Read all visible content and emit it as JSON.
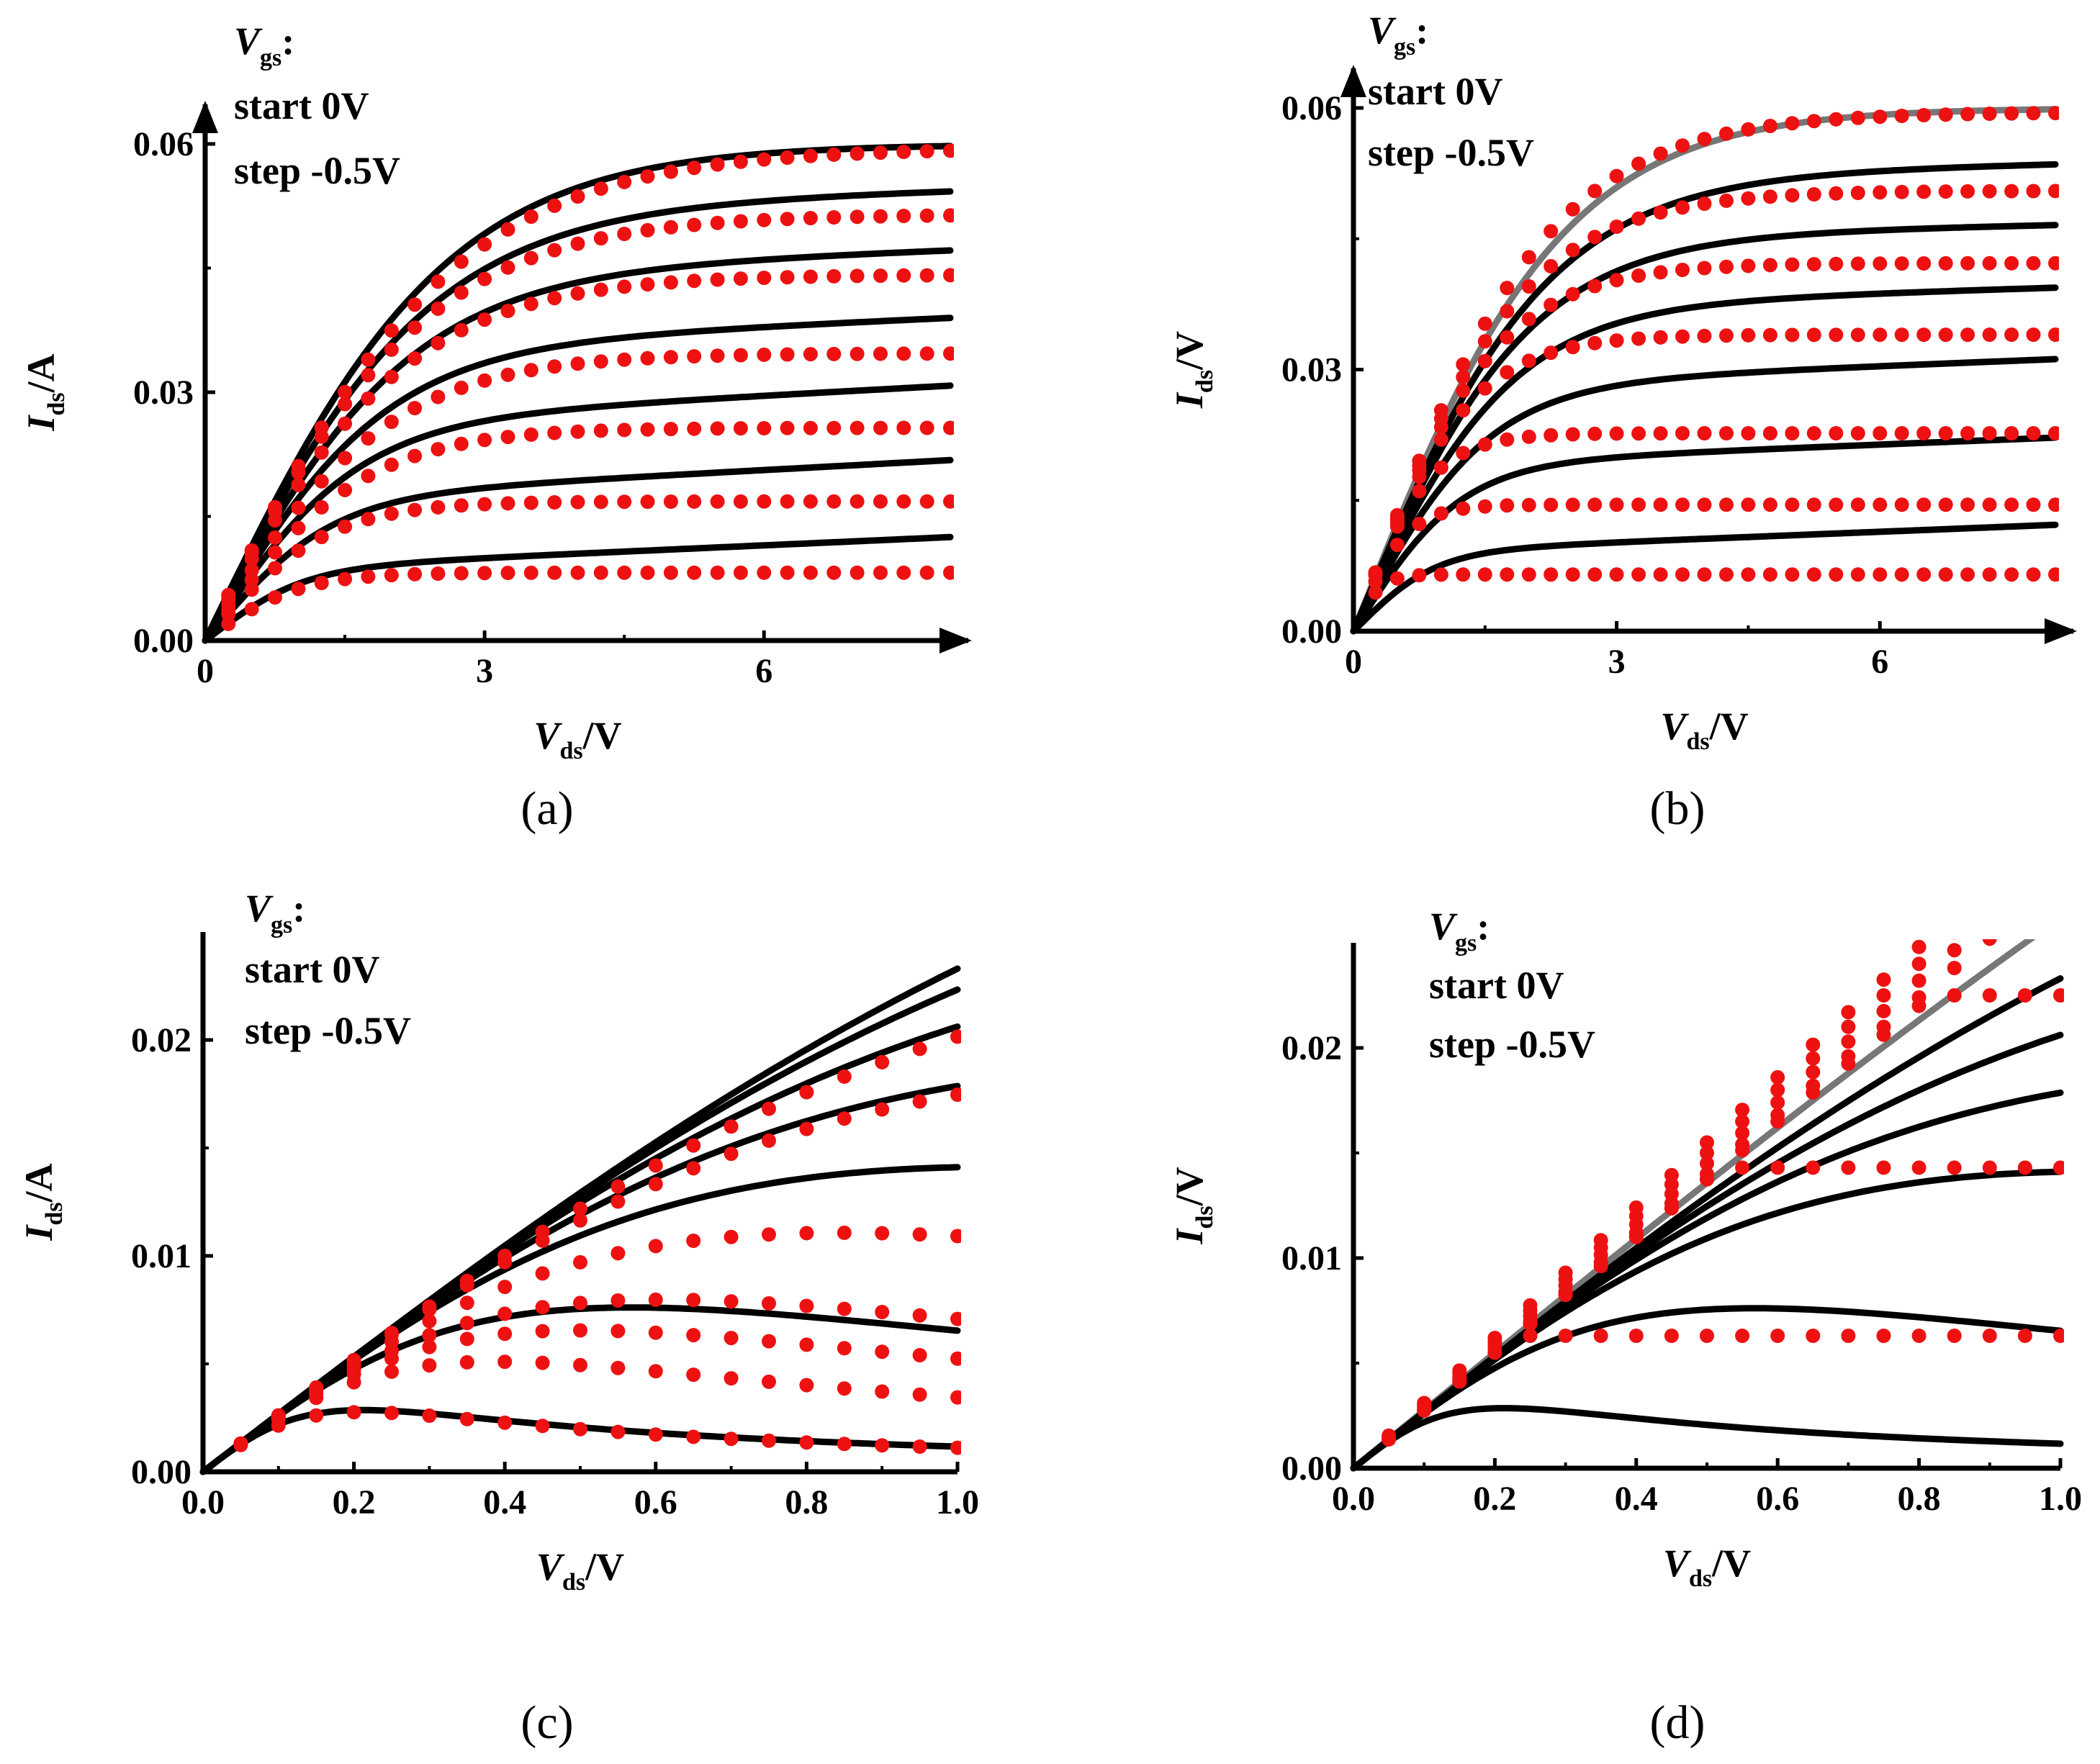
{
  "figure": {
    "panels": [
      "a",
      "b",
      "c",
      "d"
    ]
  },
  "chart_data": [
    {
      "id": "a",
      "type": "line",
      "caption": "(a)",
      "xlabel": {
        "main": "V",
        "sub": "ds",
        "unit": "/V"
      },
      "ylabel": {
        "main": "I",
        "sub": "ds",
        "unit": "/A"
      },
      "xlim": [
        0,
        8
      ],
      "ylim": [
        0,
        0.06
      ],
      "x_ticks": [
        0,
        3,
        6
      ],
      "x_tick_labels": [
        "0",
        "3",
        "6"
      ],
      "y_ticks": [
        0,
        0.03,
        0.06
      ],
      "y_tick_labels": [
        "0.00",
        "0.03",
        "0.06"
      ],
      "arrows": true,
      "legend": {
        "title_main": "V",
        "title_sub": "gs",
        "title_colon": ":",
        "lines": [
          "start 0V",
          "step -0.5V"
        ],
        "position": "top-left"
      },
      "line_color": "#000000",
      "dot_color": "#ee1111",
      "model_curves": [
        {
          "isat": 0.06,
          "slope": 0.0,
          "vsat": 2.6
        },
        {
          "isat": 0.052,
          "slope": 0.0003,
          "vsat": 2.4
        },
        {
          "isat": 0.044,
          "slope": 0.0004,
          "vsat": 2.2
        },
        {
          "isat": 0.035,
          "slope": 0.0005,
          "vsat": 1.9
        },
        {
          "isat": 0.026,
          "slope": 0.0006,
          "vsat": 1.6
        },
        {
          "isat": 0.017,
          "slope": 0.0006,
          "vsat": 1.3
        },
        {
          "isat": 0.0085,
          "slope": 0.0005,
          "vsat": 1.0
        }
      ],
      "measured_points": [
        {
          "isat": 0.0595,
          "vsat": 2.7
        },
        {
          "isat": 0.0515,
          "vsat": 2.4
        },
        {
          "isat": 0.0442,
          "vsat": 2.2
        },
        {
          "isat": 0.0347,
          "vsat": 2.0
        },
        {
          "isat": 0.0257,
          "vsat": 1.7
        },
        {
          "isat": 0.0168,
          "vsat": 1.3
        },
        {
          "isat": 0.0082,
          "vsat": 1.0
        }
      ],
      "point_x_step": 0.25
    },
    {
      "id": "b",
      "type": "line",
      "caption": "(b)",
      "xlabel": {
        "main": "V",
        "sub": "ds",
        "unit": "/V"
      },
      "ylabel": {
        "main": "I",
        "sub": "ds",
        "unit": "/V"
      },
      "xlim": [
        0,
        8
      ],
      "ylim": [
        0,
        0.06
      ],
      "x_ticks": [
        0,
        3,
        6
      ],
      "x_tick_labels": [
        "0",
        "3",
        "6"
      ],
      "y_ticks": [
        0,
        0.03,
        0.06
      ],
      "y_tick_labels": [
        "0.00",
        "0.03",
        "0.06"
      ],
      "arrows": true,
      "legend": {
        "title_main": "V",
        "title_sub": "gs",
        "title_colon": ":",
        "lines": [
          "start 0V",
          "step -0.5V"
        ],
        "position": "top-left"
      },
      "line_color": "#000000",
      "gray_color": "#777777",
      "dot_color": "#ee1111",
      "model_curves": [
        {
          "isat": 0.06,
          "slope": 0.0,
          "vsat": 2.4,
          "gray": true
        },
        {
          "isat": 0.052,
          "slope": 0.0002,
          "vsat": 2.2
        },
        {
          "isat": 0.045,
          "slope": 0.0002,
          "vsat": 2.0
        },
        {
          "isat": 0.037,
          "slope": 0.0003,
          "vsat": 1.8
        },
        {
          "isat": 0.028,
          "slope": 0.0004,
          "vsat": 1.5
        },
        {
          "isat": 0.019,
          "slope": 0.0004,
          "vsat": 1.2
        },
        {
          "isat": 0.009,
          "slope": 0.0004,
          "vsat": 0.9
        }
      ],
      "measured_points": [
        {
          "isat": 0.0595,
          "vsat": 2.2
        },
        {
          "isat": 0.0505,
          "vsat": 1.9
        },
        {
          "isat": 0.0422,
          "vsat": 1.6
        },
        {
          "isat": 0.034,
          "vsat": 1.3
        },
        {
          "isat": 0.0227,
          "vsat": 0.85
        },
        {
          "isat": 0.0145,
          "vsat": 0.6
        },
        {
          "isat": 0.0065,
          "vsat": 0.3
        }
      ],
      "point_x_step": 0.25
    },
    {
      "id": "c",
      "type": "line",
      "caption": "(c)",
      "xlabel": {
        "main": "V",
        "sub": "ds",
        "unit": "/V"
      },
      "ylabel": {
        "main": "I",
        "sub": "ds",
        "unit": "/A"
      },
      "xlim": [
        0,
        1
      ],
      "ylim": [
        0,
        0.025
      ],
      "x_ticks": [
        0,
        0.2,
        0.4,
        0.6,
        0.8,
        1.0
      ],
      "x_tick_labels": [
        "0.0",
        "0.2",
        "0.4",
        "0.6",
        "0.8",
        "1.0"
      ],
      "y_ticks": [
        0,
        0.01,
        0.02
      ],
      "y_tick_labels": [
        "0.00",
        "0.01",
        "0.02"
      ],
      "arrows": false,
      "legend": {
        "title_main": "V",
        "title_sub": "gs",
        "title_colon": ":",
        "lines": [
          "start 0V",
          "step -0.5V"
        ],
        "position": "top-left"
      },
      "line_color": "#000000",
      "dot_color": "#ee1111",
      "model_curves": [
        {
          "g0": 0.0268,
          "k": 0.15
        },
        {
          "g0": 0.0268,
          "k": 0.2
        },
        {
          "g0": 0.0268,
          "k": 0.3
        },
        {
          "g0": 0.0268,
          "k": 0.5
        },
        {
          "g0": 0.0268,
          "k": 0.9
        },
        {
          "g0": 0.0268,
          "k": 3.1
        },
        {
          "g0": 0.0268,
          "k": 22.0
        }
      ],
      "measured_points": [
        {
          "g0": 0.0262,
          "k": 0.3
        },
        {
          "g0": 0.0262,
          "k": 0.5
        },
        {
          "g0": 0.0262,
          "k": 1.4
        },
        {
          "g0": 0.0262,
          "k": 2.7
        },
        {
          "g0": 0.0262,
          "k": 4.0
        },
        {
          "g0": 0.0262,
          "k": 6.6
        },
        {
          "g0": 0.0262,
          "k": 22.5
        }
      ],
      "point_x_step": 0.05
    },
    {
      "id": "d",
      "type": "line",
      "caption": "(d)",
      "xlabel": {
        "main": "V",
        "sub": "ds",
        "unit": "/V"
      },
      "ylabel": {
        "main": "I",
        "sub": "ds",
        "unit": "/V"
      },
      "xlim": [
        0,
        1
      ],
      "ylim": [
        0,
        0.025
      ],
      "x_ticks": [
        0,
        0.2,
        0.4,
        0.6,
        0.8,
        1.0
      ],
      "x_tick_labels": [
        "0.0",
        "0.2",
        "0.4",
        "0.6",
        "0.8",
        "1.0"
      ],
      "y_ticks": [
        0,
        0.01,
        0.02
      ],
      "y_tick_labels": [
        "0.00",
        "0.01",
        "0.02"
      ],
      "arrows": false,
      "legend": {
        "title_main": "V",
        "title_sub": "gs",
        "title_colon": ":",
        "lines": [
          "start 0V",
          "step -0.5V"
        ],
        "position": "top-left"
      },
      "line_color": "#000000",
      "gray_color": "#777777",
      "dot_color": "#ee1111",
      "model_curves": [
        {
          "g0": 0.0275,
          "k": 0.05,
          "gray": true
        },
        {
          "g0": 0.0268,
          "k": 0.15
        },
        {
          "g0": 0.0268,
          "k": 0.3
        },
        {
          "g0": 0.0268,
          "k": 0.5
        },
        {
          "g0": 0.0268,
          "k": 0.9
        },
        {
          "g0": 0.0268,
          "k": 3.1
        },
        {
          "g0": 0.0268,
          "k": 22.0
        }
      ],
      "measured_points": [
        {
          "slope": 0.031,
          "cap": 0.026
        },
        {
          "slope": 0.03,
          "cap": 0.026
        },
        {
          "slope": 0.029,
          "cap": 0.026
        },
        {
          "slope": 0.028,
          "cap": 0.026
        },
        {
          "slope": 0.0275,
          "cap": 0.0225
        },
        {
          "slope": 0.0275,
          "cap": 0.0143
        },
        {
          "slope": 0.0275,
          "cap": 0.0063
        }
      ],
      "point_x_step": 0.05
    }
  ]
}
